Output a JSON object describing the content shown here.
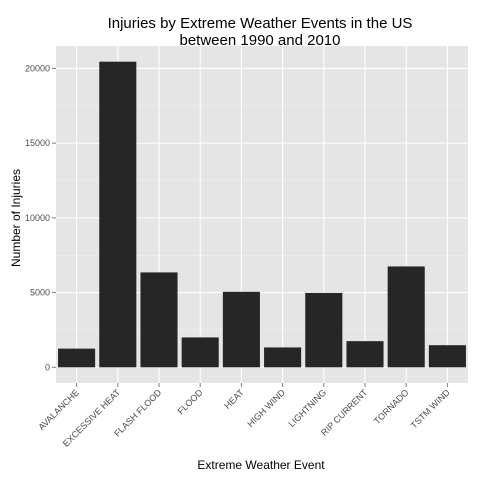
{
  "chart_data": {
    "type": "bar",
    "title_lines": [
      "Injuries by Extreme Weather Events in the US",
      "between 1990 and 2010"
    ],
    "xlabel": "Extreme Weather Event",
    "ylabel": "Number of Injuries",
    "categories": [
      "AVALANCHE",
      "EXCESSIVE HEAT",
      "FLASH FLOOD",
      "FLOOD",
      "HEAT",
      "HIGH WIND",
      "LIGHTNING",
      "RIP CURRENT",
      "TORNADO",
      "TSTM WIND"
    ],
    "values": [
      1250,
      20450,
      6350,
      2000,
      5050,
      1330,
      4980,
      1750,
      6750,
      1480
    ],
    "yticks": [
      0,
      5000,
      10000,
      15000,
      20000
    ],
    "ytick_labels": [
      "0",
      "5000",
      "10000",
      "15000",
      "20000"
    ],
    "ylim": [
      -1050,
      21500
    ],
    "grid": true,
    "legend": "none",
    "colors": {
      "panel_background": "#e5e5e5",
      "grid_major": "#ffffff",
      "grid_minor": "#f2f2f2",
      "bar_fill": "#262626",
      "tick_text": "#4d4d4d",
      "tick_mark": "#7f7f7f"
    }
  }
}
